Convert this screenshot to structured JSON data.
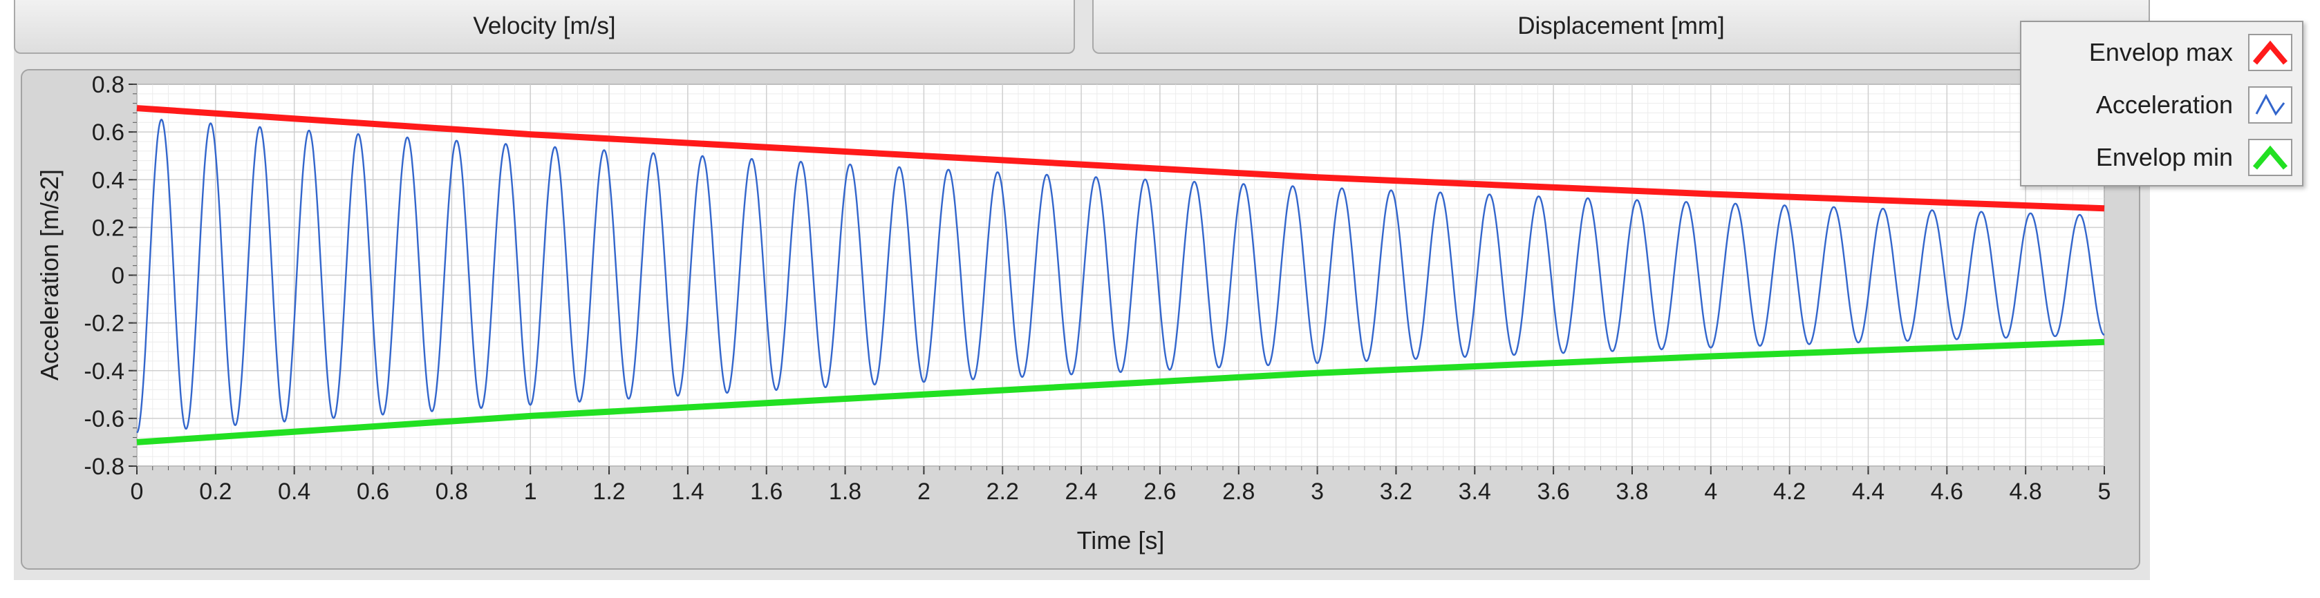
{
  "tabs": [
    {
      "label": "Velocity [m/s]"
    },
    {
      "label": "Displacement [mm]"
    }
  ],
  "legend": {
    "items": [
      {
        "label": "Envelop max",
        "color": "#ff1a1a",
        "icon": "thick-line-icon"
      },
      {
        "label": "Acceleration",
        "color": "#3366cc",
        "icon": "thin-line-icon"
      },
      {
        "label": "Envelop min",
        "color": "#22e022",
        "icon": "thick-line-icon"
      }
    ]
  },
  "chart_data": {
    "type": "line",
    "title": "",
    "xlabel": "Time [s]",
    "ylabel": "Acceleration [m/s2]",
    "xlim": [
      0,
      5
    ],
    "ylim": [
      -0.8,
      0.8
    ],
    "x_ticks": [
      "0",
      "0.2",
      "0.4",
      "0.6",
      "0.8",
      "1",
      "1.2",
      "1.4",
      "1.6",
      "1.8",
      "2",
      "2.2",
      "2.4",
      "2.6",
      "2.8",
      "3",
      "3.2",
      "3.4",
      "3.6",
      "3.8",
      "4",
      "4.2",
      "4.4",
      "4.6",
      "4.8",
      "5"
    ],
    "y_ticks": [
      "0.8",
      "0.6",
      "0.4",
      "0.2",
      "0",
      "-0.2",
      "-0.4",
      "-0.6",
      "-0.8"
    ],
    "grid": true,
    "legend_position": "top-right",
    "series": [
      {
        "name": "Envelop max",
        "color": "#ff1a1a",
        "x": [
          0,
          1,
          2,
          3,
          4,
          5
        ],
        "values": [
          0.7,
          0.59,
          0.5,
          0.41,
          0.34,
          0.28
        ]
      },
      {
        "name": "Acceleration",
        "color": "#3366cc",
        "frequency_hz": 8,
        "amplitude_start": 0.66,
        "amplitude_end": 0.25,
        "x_end": 5
      },
      {
        "name": "Envelop min",
        "color": "#22e022",
        "x": [
          0,
          1,
          2,
          3,
          4,
          5
        ],
        "values": [
          -0.7,
          -0.59,
          -0.5,
          -0.41,
          -0.34,
          -0.28
        ]
      }
    ]
  }
}
